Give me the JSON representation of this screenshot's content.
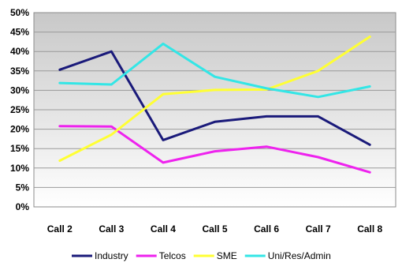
{
  "chart_data": {
    "type": "line",
    "categories": [
      "Call 2",
      "Call 3",
      "Call 4",
      "Call 5",
      "Call 6",
      "Call 7",
      "Call 8"
    ],
    "series": [
      {
        "name": "Industry",
        "color": "#1a1a7a",
        "values": [
          35.3,
          40.0,
          17.2,
          21.9,
          23.3,
          23.3,
          16.0
        ]
      },
      {
        "name": "Telcos",
        "color": "#ee22ee",
        "values": [
          20.8,
          20.7,
          11.4,
          14.3,
          15.5,
          12.8,
          8.9
        ]
      },
      {
        "name": "SME",
        "color": "#ffff33",
        "values": [
          11.9,
          18.6,
          29.0,
          30.1,
          30.2,
          35.0,
          43.8
        ]
      },
      {
        "name": "Uni/Res/Admin",
        "color": "#33e6e6",
        "values": [
          31.9,
          31.5,
          42.0,
          33.5,
          30.5,
          28.3,
          31.0
        ]
      }
    ],
    "yticks": [
      "0%",
      "5%",
      "10%",
      "15%",
      "20%",
      "25%",
      "30%",
      "35%",
      "40%",
      "45%",
      "50%"
    ],
    "ylim": [
      0,
      50
    ],
    "y_unit": "%",
    "grid": true,
    "legend_position": "bottom",
    "plot_background": "gradient gray-white"
  }
}
